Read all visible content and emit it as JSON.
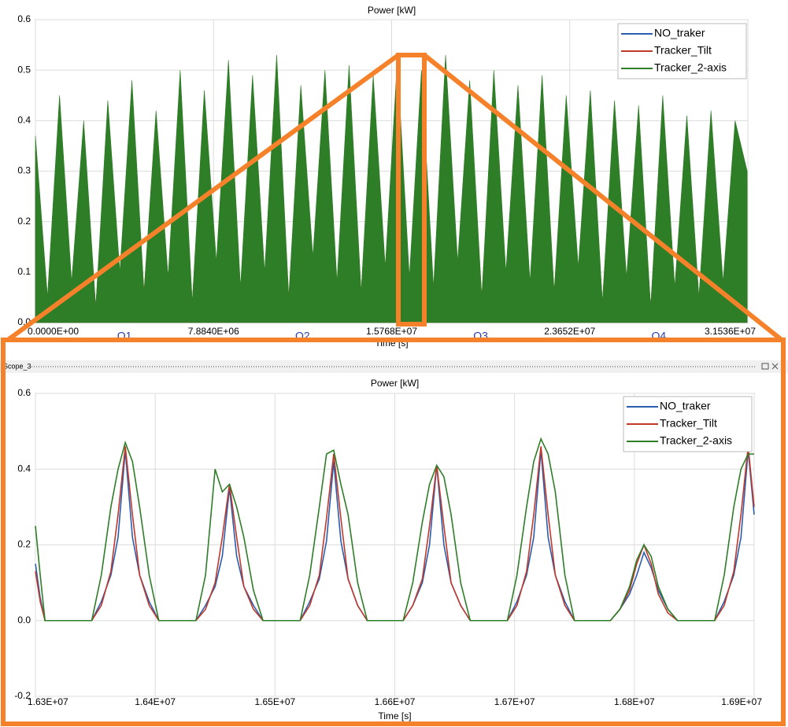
{
  "chart_data": [
    {
      "type": "area",
      "title": "Power [kW]",
      "x_label": "Time [s]",
      "annotations": [
        "Q1",
        "Q2",
        "Q3",
        "Q4"
      ],
      "xlim": [
        0,
        31536000
      ],
      "xticks": [
        {
          "value": 0,
          "label": "0.0000E+00"
        },
        {
          "value": 7884000,
          "label": "7.8840E+06"
        },
        {
          "value": 15768000,
          "label": "1.5768E+07"
        },
        {
          "value": 23652000,
          "label": "2.3652E+07"
        },
        {
          "value": 31536000,
          "label": "3.1536E+07"
        }
      ],
      "ylim": [
        0,
        0.6
      ],
      "yticks": [
        {
          "value": 0,
          "label": "0.0"
        },
        0.1,
        0.2,
        0.3,
        0.4,
        0.5,
        0.6
      ],
      "grid": true,
      "legend": "upper right",
      "x": [
        0,
        534000,
        1068000,
        1602000,
        2136000,
        2670000,
        3204000,
        3738000,
        4272000,
        4806000,
        5340000,
        5874000,
        6408000,
        6942000,
        7476000,
        8010000,
        8544000,
        9078000,
        9612000,
        10146000,
        10680000,
        11214000,
        11748000,
        12282000,
        12816000,
        13350000,
        13884000,
        14418000,
        14952000,
        15486000,
        16020000,
        16554000,
        17088000,
        17622000,
        18156000,
        18690000,
        19224000,
        19758000,
        20292000,
        20826000,
        21360000,
        21894000,
        22428000,
        22962000,
        23496000,
        24030000,
        24564000,
        25098000,
        25632000,
        26166000,
        26700000,
        27234000,
        27768000,
        28302000,
        28836000,
        29370000,
        29904000,
        30438000,
        30972000,
        31506000
      ],
      "series": [
        {
          "name": "NO_traker",
          "color": "#2a5db0",
          "values": [
            0.31,
            0.04,
            0.38,
            0.07,
            0.34,
            0.03,
            0.37,
            0.09,
            0.41,
            0.05,
            0.36,
            0.08,
            0.43,
            0.03,
            0.39,
            0.1,
            0.44,
            0.06,
            0.42,
            0.09,
            0.45,
            0.04,
            0.4,
            0.11,
            0.43,
            0.07,
            0.43,
            0.05,
            0.42,
            0.09,
            0.44,
            0.08,
            0.43,
            0.06,
            0.45,
            0.1,
            0.41,
            0.04,
            0.43,
            0.09,
            0.4,
            0.07,
            0.42,
            0.05,
            0.38,
            0.09,
            0.39,
            0.03,
            0.37,
            0.08,
            0.37,
            0.03,
            0.38,
            0.06,
            0.35,
            0.04,
            0.36,
            0.07,
            0.34,
            0.26
          ]
        },
        {
          "name": "Tracker_Tilt",
          "color": "#c0392b",
          "values": [
            0.34,
            0.05,
            0.41,
            0.07,
            0.37,
            0.03,
            0.4,
            0.09,
            0.44,
            0.06,
            0.39,
            0.08,
            0.46,
            0.04,
            0.42,
            0.11,
            0.48,
            0.06,
            0.45,
            0.09,
            0.49,
            0.05,
            0.43,
            0.12,
            0.46,
            0.07,
            0.47,
            0.06,
            0.45,
            0.1,
            0.48,
            0.08,
            0.46,
            0.06,
            0.49,
            0.11,
            0.44,
            0.05,
            0.46,
            0.09,
            0.43,
            0.07,
            0.45,
            0.06,
            0.41,
            0.1,
            0.42,
            0.04,
            0.4,
            0.08,
            0.4,
            0.03,
            0.41,
            0.06,
            0.38,
            0.05,
            0.39,
            0.07,
            0.37,
            0.28
          ]
        },
        {
          "name": "Tracker_2-axis",
          "color": "#2e7d27",
          "values": [
            0.37,
            0.05,
            0.45,
            0.08,
            0.4,
            0.03,
            0.44,
            0.1,
            0.48,
            0.06,
            0.42,
            0.09,
            0.5,
            0.04,
            0.46,
            0.12,
            0.52,
            0.07,
            0.49,
            0.1,
            0.53,
            0.05,
            0.47,
            0.13,
            0.5,
            0.08,
            0.51,
            0.06,
            0.49,
            0.11,
            0.52,
            0.09,
            0.5,
            0.07,
            0.53,
            0.12,
            0.48,
            0.05,
            0.5,
            0.1,
            0.47,
            0.08,
            0.49,
            0.06,
            0.45,
            0.11,
            0.46,
            0.04,
            0.44,
            0.09,
            0.43,
            0.03,
            0.45,
            0.07,
            0.41,
            0.05,
            0.42,
            0.08,
            0.4,
            0.3
          ]
        }
      ]
    },
    {
      "type": "line",
      "window_title": "Scope_3",
      "title": "Power [kW]",
      "x_label": "Time [s]",
      "xlim": [
        16300000,
        16900000
      ],
      "xticks": [
        {
          "value": 16300000,
          "label": "1.63E+07"
        },
        {
          "value": 16400000,
          "label": "1.64E+07"
        },
        {
          "value": 16500000,
          "label": "1.65E+07"
        },
        {
          "value": 16600000,
          "label": "1.66E+07"
        },
        {
          "value": 16700000,
          "label": "1.67E+07"
        },
        {
          "value": 16800000,
          "label": "1.68E+07"
        },
        {
          "value": 16900000,
          "label": "1.69E+07"
        }
      ],
      "ylim": [
        -0.2,
        0.6
      ],
      "yticks": [
        -0.2,
        {
          "value": 0,
          "label": "0.0"
        },
        0.2,
        0.4,
        0.6
      ],
      "grid": true,
      "legend": "upper right",
      "x": [
        16300000,
        16304000,
        16308000,
        16347000,
        16355000,
        16363000,
        16369000,
        16375000,
        16381000,
        16387000,
        16395000,
        16403000,
        16434000,
        16442000,
        16450000,
        16456000,
        16462000,
        16468000,
        16474000,
        16482000,
        16490000,
        16521000,
        16529000,
        16537000,
        16543000,
        16549000,
        16555000,
        16561000,
        16569000,
        16577000,
        16607000,
        16615000,
        16623000,
        16629000,
        16635000,
        16641000,
        16647000,
        16655000,
        16663000,
        16694000,
        16702000,
        16710000,
        16716000,
        16722000,
        16728000,
        16734000,
        16742000,
        16750000,
        16780000,
        16788000,
        16796000,
        16802000,
        16808000,
        16814000,
        16820000,
        16828000,
        16836000,
        16867000,
        16875000,
        16883000,
        16889000,
        16895000,
        16900000
      ],
      "series": [
        {
          "name": "NO_traker",
          "color": "#2a5db0",
          "values": [
            0.15,
            0.06,
            0,
            0,
            0.05,
            0.12,
            0.22,
            0.45,
            0.22,
            0.12,
            0.05,
            0,
            0,
            0.04,
            0.09,
            0.17,
            0.35,
            0.17,
            0.09,
            0.04,
            0,
            0,
            0.05,
            0.11,
            0.21,
            0.42,
            0.21,
            0.11,
            0.04,
            0,
            0,
            0.04,
            0.1,
            0.2,
            0.41,
            0.2,
            0.1,
            0.04,
            0,
            0,
            0.05,
            0.12,
            0.22,
            0.45,
            0.22,
            0.12,
            0.05,
            0,
            0,
            0.03,
            0.07,
            0.12,
            0.18,
            0.14,
            0.08,
            0.03,
            0,
            0,
            0.05,
            0.12,
            0.22,
            0.45,
            0.28
          ]
        },
        {
          "name": "Tracker_Tilt",
          "color": "#c0392b",
          "values": [
            0.13,
            0.05,
            0,
            0,
            0.04,
            0.13,
            0.28,
            0.46,
            0.28,
            0.12,
            0.04,
            0,
            0,
            0.03,
            0.1,
            0.22,
            0.36,
            0.22,
            0.09,
            0.03,
            0,
            0,
            0.04,
            0.12,
            0.27,
            0.44,
            0.27,
            0.11,
            0.04,
            0,
            0,
            0.04,
            0.11,
            0.25,
            0.41,
            0.25,
            0.1,
            0.04,
            0,
            0,
            0.04,
            0.13,
            0.28,
            0.46,
            0.28,
            0.12,
            0.04,
            0,
            0,
            0.03,
            0.08,
            0.15,
            0.2,
            0.15,
            0.07,
            0.02,
            0,
            0,
            0.04,
            0.13,
            0.28,
            0.46,
            0.3
          ]
        },
        {
          "name": "Tracker_2-axis",
          "color": "#2e7d27",
          "values": [
            0.25,
            0.12,
            0,
            0,
            0.12,
            0.3,
            0.4,
            0.47,
            0.42,
            0.3,
            0.12,
            0,
            0,
            0.12,
            0.4,
            0.34,
            0.36,
            0.3,
            0.22,
            0.08,
            0,
            0,
            0.12,
            0.3,
            0.44,
            0.45,
            0.36,
            0.28,
            0.1,
            0,
            0,
            0.1,
            0.26,
            0.36,
            0.41,
            0.38,
            0.28,
            0.1,
            0,
            0,
            0.12,
            0.3,
            0.42,
            0.48,
            0.44,
            0.34,
            0.12,
            0,
            0,
            0.03,
            0.09,
            0.16,
            0.2,
            0.17,
            0.09,
            0.03,
            0,
            0,
            0.12,
            0.3,
            0.4,
            0.44,
            0.44
          ]
        }
      ]
    }
  ]
}
